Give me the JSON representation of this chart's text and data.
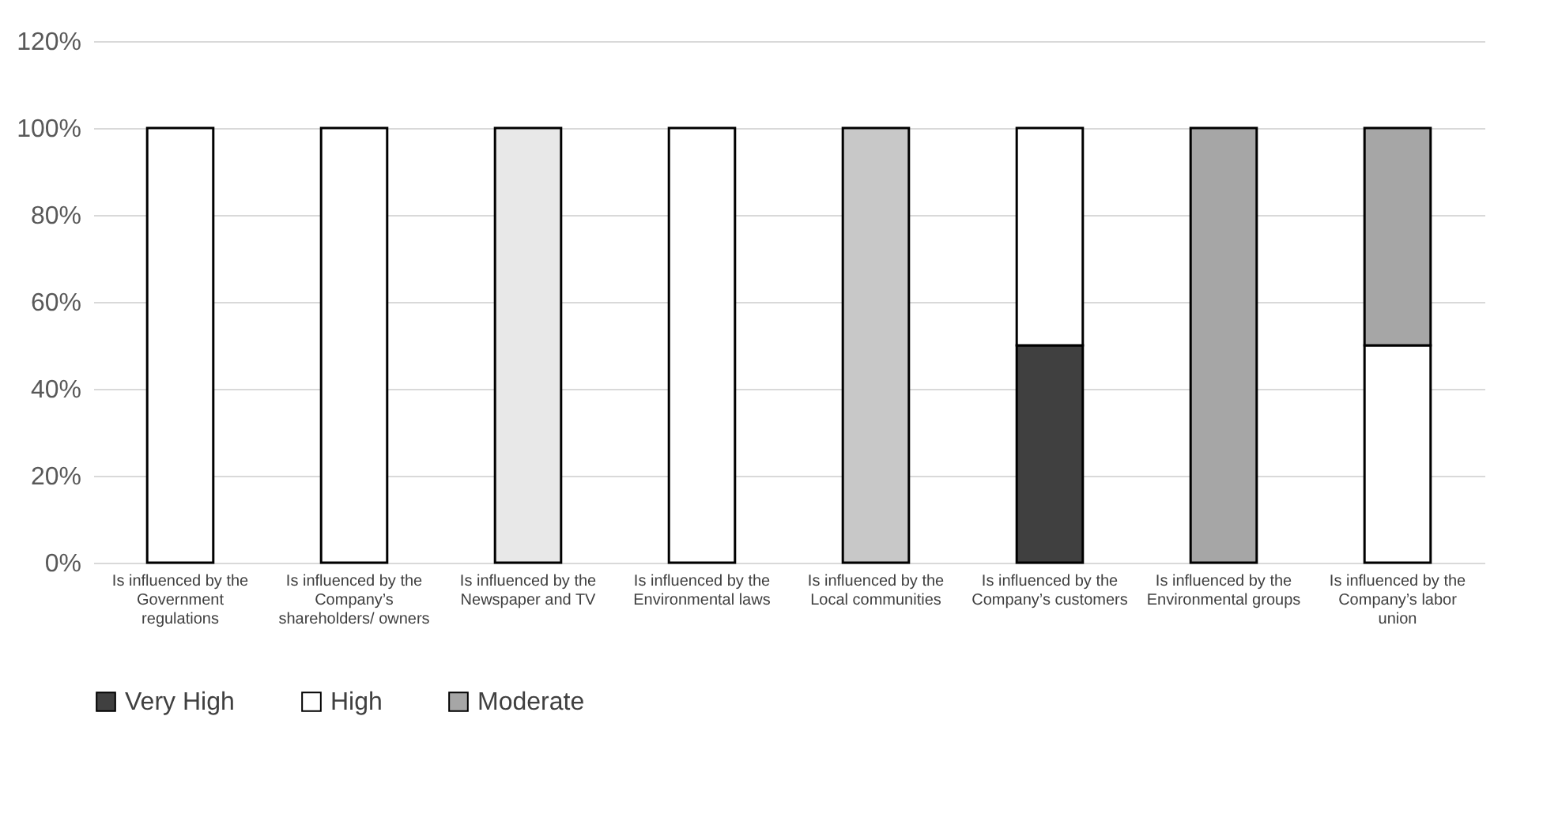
{
  "chart_data": {
    "type": "bar",
    "stacked": true,
    "categories": [
      "Is influenced by the Government regulations",
      "Is influenced by the Company’s shareholders/ owners",
      "Is influenced by the Newspaper and TV",
      "Is influenced by the Environmental laws",
      "Is influenced by the Local communities",
      "Is influenced by the Company’s customers",
      "Is influenced by the Environmental groups",
      "Is influenced by the Company’s labor union"
    ],
    "series": [
      {
        "name": "Very High",
        "color": "#404040",
        "values": [
          0,
          0,
          0,
          0,
          0,
          50,
          0,
          0
        ]
      },
      {
        "name": "High",
        "color": "#ffffff",
        "values": [
          100,
          100,
          0,
          100,
          0,
          50,
          0,
          50
        ]
      },
      {
        "name": "Moderate",
        "color": "#a6a6a6",
        "values": [
          0,
          0,
          0,
          0,
          0,
          0,
          100,
          50
        ]
      },
      {
        "color": "#e8e8e8",
        "values": [
          0,
          0,
          100,
          0,
          0,
          0,
          0,
          0
        ]
      },
      {
        "color": "#c8c8c8",
        "values": [
          0,
          0,
          0,
          0,
          100,
          0,
          0,
          0
        ]
      }
    ],
    "ylim": [
      0,
      120
    ],
    "yticks": [
      {
        "value": 0,
        "label": "0%"
      },
      {
        "value": 20,
        "label": "20%"
      },
      {
        "value": 40,
        "label": "40%"
      },
      {
        "value": 60,
        "label": "60%"
      },
      {
        "value": 80,
        "label": "80%"
      },
      {
        "value": 100,
        "label": "100%"
      },
      {
        "value": 120,
        "label": "120%"
      }
    ],
    "grid": "y",
    "legend": "bottom"
  }
}
